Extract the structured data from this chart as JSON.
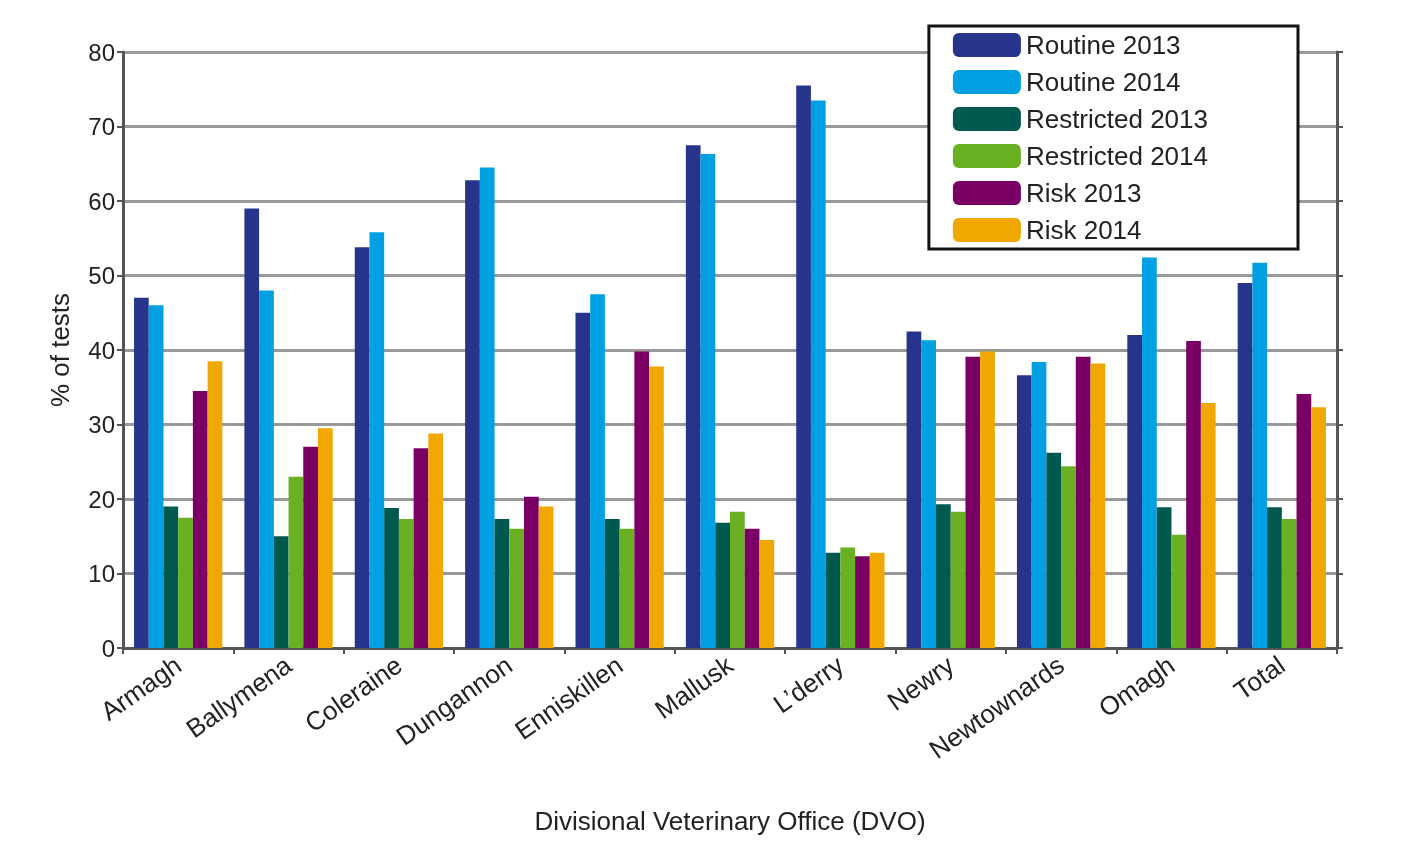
{
  "chart_data": {
    "type": "bar",
    "xlabel": "Divisional Veterinary Office (DVO)",
    "ylabel": "% of tests",
    "categories": [
      "Armagh",
      "Ballymena",
      "Coleraine",
      "Dungannon",
      "Enniskillen",
      "Mallusk",
      "L’derry",
      "Newry",
      "Newtownards",
      "Omagh",
      "Total"
    ],
    "series": [
      {
        "name": "Routine 2013",
        "color": "#27348b",
        "values": [
          47,
          59,
          53.8,
          62.8,
          45,
          67.5,
          75.5,
          42.5,
          36.6,
          42,
          49
        ]
      },
      {
        "name": "Routine 2014",
        "color": "#00a0e3",
        "values": [
          46,
          48,
          55.8,
          64.5,
          47.5,
          66.3,
          73.5,
          41.3,
          38.4,
          52.4,
          51.7
        ]
      },
      {
        "name": "Restricted 2013",
        "color": "#00594f",
        "values": [
          19,
          15,
          18.8,
          17.3,
          17.3,
          16.8,
          12.8,
          19.3,
          26.2,
          18.9,
          18.9
        ]
      },
      {
        "name": "Restricted 2014",
        "color": "#6ab023",
        "values": [
          17.5,
          23,
          17.3,
          16,
          16,
          18.3,
          13.5,
          18.3,
          24.4,
          15.2,
          17.3
        ]
      },
      {
        "name": "Risk 2013",
        "color": "#7a0066",
        "values": [
          34.5,
          27,
          26.8,
          20.3,
          39.8,
          16,
          12.3,
          39.1,
          39.1,
          41.2,
          34.1
        ]
      },
      {
        "name": "Risk 2014",
        "color": "#f0a800",
        "values": [
          38.5,
          29.5,
          28.8,
          19,
          37.8,
          14.5,
          12.8,
          39.8,
          38.2,
          32.9,
          32.3
        ]
      }
    ],
    "ylim": [
      0,
      80
    ],
    "yticks": [
      0,
      10,
      20,
      30,
      40,
      50,
      60,
      70,
      80
    ],
    "grid": "y",
    "legend": "top right"
  }
}
